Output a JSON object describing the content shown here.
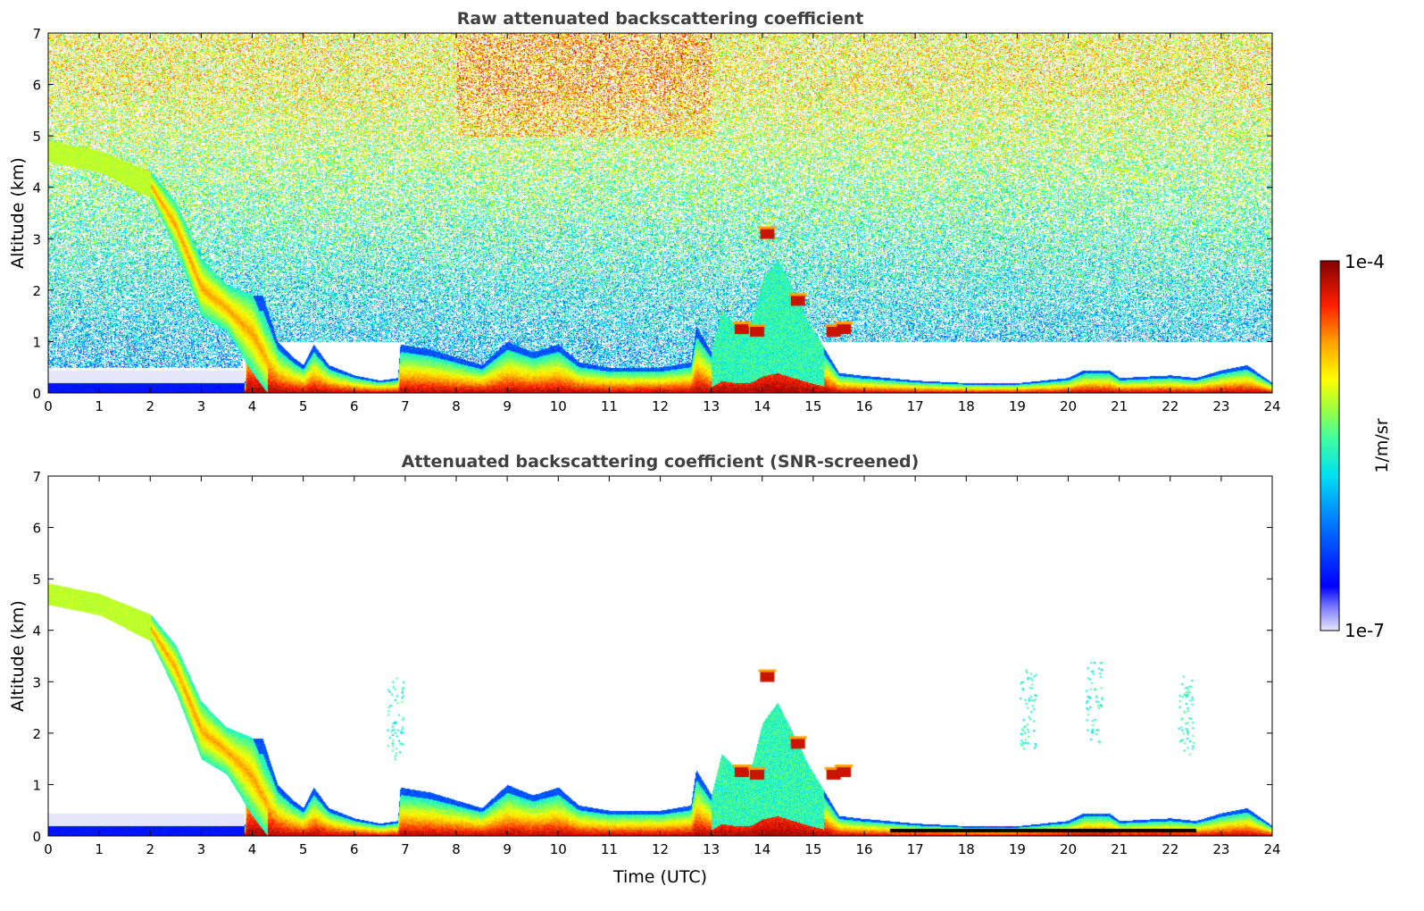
{
  "chart_data": [
    {
      "type": "heatmap",
      "title": "Raw attenuated backscattering coefficient",
      "xlabel": "",
      "ylabel": "Altitude (km)",
      "xlim": [
        0,
        24
      ],
      "ylim": [
        0,
        7
      ],
      "xticks": [
        "0",
        "1",
        "2",
        "3",
        "4",
        "5",
        "6",
        "7",
        "8",
        "9",
        "10",
        "11",
        "12",
        "13",
        "14",
        "15",
        "16",
        "17",
        "18",
        "19",
        "20",
        "21",
        "22",
        "23",
        "24"
      ],
      "yticks": [
        "0",
        "1",
        "2",
        "3",
        "4",
        "5",
        "6",
        "7"
      ],
      "noise": true
    },
    {
      "type": "heatmap",
      "title": "Attenuated backscattering coefficient (SNR-screened)",
      "xlabel": "Time (UTC)",
      "ylabel": "Altitude (km)",
      "xlim": [
        0,
        24
      ],
      "ylim": [
        0,
        7
      ],
      "xticks": [
        "0",
        "1",
        "2",
        "3",
        "4",
        "5",
        "6",
        "7",
        "8",
        "9",
        "10",
        "11",
        "12",
        "13",
        "14",
        "15",
        "16",
        "17",
        "18",
        "19",
        "20",
        "21",
        "22",
        "23",
        "24"
      ],
      "yticks": [
        "0",
        "1",
        "2",
        "3",
        "4",
        "5",
        "6",
        "7"
      ],
      "noise": false
    }
  ],
  "layers": {
    "boundary_layer_top_km": [
      [
        0,
        0.2
      ],
      [
        3.85,
        0.2
      ],
      [
        3.9,
        1.9
      ],
      [
        4.2,
        1.9
      ],
      [
        4.5,
        1.0
      ],
      [
        4.8,
        0.7
      ],
      [
        5.0,
        0.55
      ],
      [
        5.2,
        0.95
      ],
      [
        5.5,
        0.55
      ],
      [
        6.0,
        0.35
      ],
      [
        6.5,
        0.25
      ],
      [
        6.85,
        0.3
      ],
      [
        6.9,
        0.95
      ],
      [
        7.5,
        0.85
      ],
      [
        8.0,
        0.7
      ],
      [
        8.5,
        0.55
      ],
      [
        9.0,
        1.0
      ],
      [
        9.5,
        0.8
      ],
      [
        10.0,
        0.95
      ],
      [
        10.4,
        0.6
      ],
      [
        11.0,
        0.5
      ],
      [
        12.0,
        0.5
      ],
      [
        12.6,
        0.6
      ],
      [
        12.7,
        1.3
      ],
      [
        13.0,
        0.8
      ],
      [
        13.2,
        1.6
      ],
      [
        13.5,
        1.3
      ],
      [
        13.8,
        1.4
      ],
      [
        14.0,
        2.2
      ],
      [
        14.3,
        2.6
      ],
      [
        14.6,
        2.0
      ],
      [
        14.9,
        1.4
      ],
      [
        15.2,
        0.9
      ],
      [
        15.5,
        0.4
      ],
      [
        15.9,
        0.35
      ],
      [
        17.0,
        0.25
      ],
      [
        18.0,
        0.2
      ],
      [
        19.0,
        0.2
      ],
      [
        19.5,
        0.25
      ],
      [
        20.0,
        0.3
      ],
      [
        20.3,
        0.45
      ],
      [
        20.8,
        0.45
      ],
      [
        21.0,
        0.3
      ],
      [
        22.0,
        0.35
      ],
      [
        22.5,
        0.3
      ],
      [
        23.0,
        0.45
      ],
      [
        23.5,
        0.55
      ],
      [
        24.0,
        0.2
      ]
    ],
    "elevated_plume_km": [
      [
        0,
        4.5,
        4.9
      ],
      [
        1,
        4.3,
        4.7
      ],
      [
        2,
        3.8,
        4.3
      ],
      [
        2.5,
        2.8,
        3.7
      ],
      [
        3.0,
        1.5,
        2.6
      ],
      [
        3.5,
        1.2,
        2.1
      ],
      [
        4.0,
        0.4,
        1.9
      ],
      [
        4.3,
        0.0,
        1.2
      ]
    ],
    "cloud_spots_km": [
      [
        14.1,
        3.1
      ],
      [
        13.6,
        1.25
      ],
      [
        13.9,
        1.2
      ],
      [
        14.7,
        1.8
      ],
      [
        15.4,
        1.2
      ],
      [
        15.6,
        1.25
      ]
    ],
    "surface_haze_km": [
      [
        0,
        0.45
      ],
      [
        3.85,
        0.45
      ]
    ]
  },
  "colorbar": {
    "min_label": "1e-7",
    "max_label": "1e-4",
    "unit_label": "1/m/sr",
    "colormap": "jet"
  }
}
